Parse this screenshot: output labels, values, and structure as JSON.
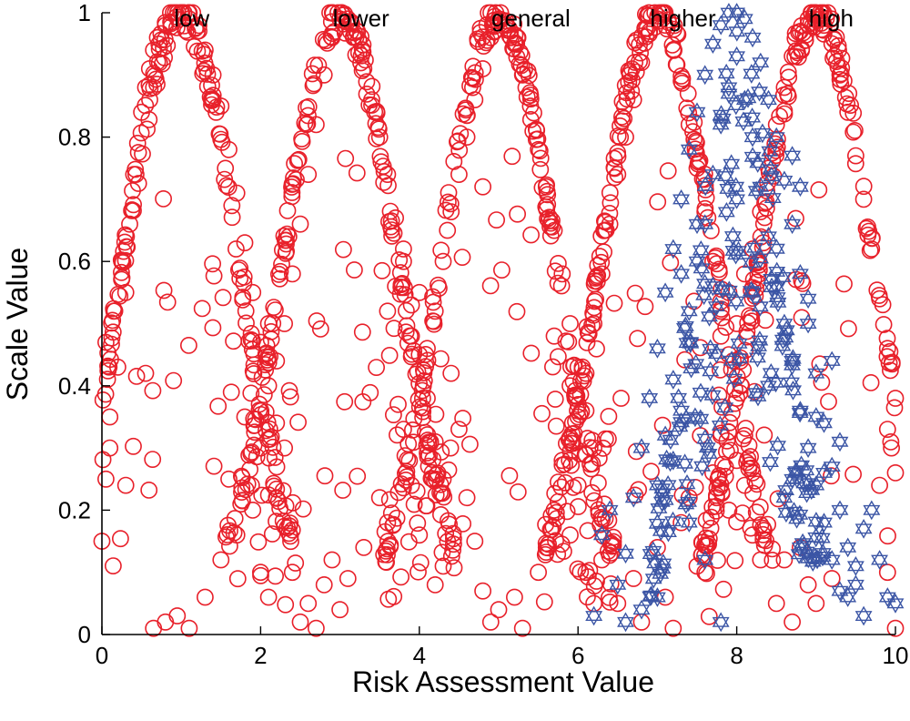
{
  "chart_data": {
    "type": "scatter",
    "title": "",
    "xlabel": "Risk Assessment Value",
    "ylabel": "Scale Value",
    "xlim": [
      0,
      10
    ],
    "ylim": [
      0,
      1
    ],
    "xticks": [
      0,
      2,
      4,
      6,
      8,
      10
    ],
    "yticks": [
      0,
      0.2,
      0.4,
      0.6,
      0.8,
      1
    ],
    "xtick_labels": [
      "0",
      "2",
      "4",
      "6",
      "8",
      "10"
    ],
    "ytick_labels": [
      "0",
      "0.2",
      "0.4",
      "0.6",
      "0.8",
      "1"
    ],
    "grid": false,
    "legend": null,
    "annotations": [
      {
        "text": "low",
        "x": 1
      },
      {
        "text": "lower",
        "x": 3
      },
      {
        "text": "general",
        "x": 5
      },
      {
        "text": "higher",
        "x": 7
      },
      {
        "text": "high",
        "x": 9
      }
    ],
    "series": [
      {
        "marker": "circle",
        "color": "#e8202a",
        "shape": "gaussian membership clouds centred at 1, 3, 5, 7, 9",
        "centers": [
          1,
          3,
          5,
          7,
          9
        ],
        "sigma": 0.72,
        "points": [
          [
            0.05,
            0.47
          ],
          [
            0.1,
            0.35
          ],
          [
            0.15,
            0.52
          ],
          [
            0.2,
            0.43
          ],
          [
            0.25,
            0.6
          ],
          [
            0.3,
            0.55
          ],
          [
            0.35,
            0.66
          ],
          [
            0.4,
            0.74
          ],
          [
            0.45,
            0.79
          ],
          [
            0.5,
            0.84
          ],
          [
            0.55,
            0.88
          ],
          [
            0.6,
            0.91
          ],
          [
            0.65,
            0.94
          ],
          [
            0.7,
            0.96
          ],
          [
            0.8,
            0.98
          ],
          [
            0.9,
            1.0
          ],
          [
            1.0,
            1.0
          ],
          [
            1.1,
            0.99
          ],
          [
            1.2,
            0.97
          ],
          [
            1.3,
            0.94
          ],
          [
            1.4,
            0.9
          ],
          [
            1.5,
            0.85
          ],
          [
            1.6,
            0.78
          ],
          [
            1.7,
            0.71
          ],
          [
            1.8,
            0.63
          ],
          [
            1.9,
            0.55
          ],
          [
            2.0,
            0.47
          ],
          [
            2.1,
            0.4
          ],
          [
            2.2,
            0.34
          ],
          [
            2.3,
            0.3
          ],
          [
            0.0,
            0.15
          ],
          [
            0.05,
            0.25
          ],
          [
            0.1,
            0.3
          ],
          [
            0.3,
            0.24
          ],
          [
            0.55,
            0.42
          ],
          [
            0.65,
            0.01
          ],
          [
            0.8,
            0.02
          ],
          [
            0.95,
            0.03
          ],
          [
            1.1,
            0.01
          ],
          [
            1.3,
            0.06
          ],
          [
            1.5,
            0.12
          ],
          [
            1.6,
            0.25
          ],
          [
            1.7,
            0.16
          ],
          [
            1.8,
            0.35
          ],
          [
            1.9,
            0.2
          ],
          [
            2.0,
            0.1
          ],
          [
            2.1,
            0.06
          ],
          [
            2.2,
            0.22
          ],
          [
            2.0,
            0.3
          ],
          [
            2.1,
            0.5
          ],
          [
            2.2,
            0.44
          ],
          [
            2.3,
            0.5
          ],
          [
            2.4,
            0.58
          ],
          [
            2.5,
            0.66
          ],
          [
            2.6,
            0.74
          ],
          [
            2.7,
            0.82
          ],
          [
            2.8,
            0.9
          ],
          [
            2.9,
            0.96
          ],
          [
            3.0,
            0.99
          ],
          [
            3.1,
            0.99
          ],
          [
            3.2,
            0.96
          ],
          [
            3.3,
            0.91
          ],
          [
            3.4,
            0.86
          ],
          [
            3.5,
            0.8
          ],
          [
            3.6,
            0.74
          ],
          [
            3.7,
            0.67
          ],
          [
            3.8,
            0.6
          ],
          [
            3.9,
            0.53
          ],
          [
            4.0,
            0.45
          ],
          [
            4.1,
            0.38
          ],
          [
            4.2,
            0.31
          ],
          [
            4.3,
            0.25
          ],
          [
            2.4,
            0.1
          ],
          [
            2.5,
            0.02
          ],
          [
            2.6,
            0.05
          ],
          [
            2.7,
            0.01
          ],
          [
            2.8,
            0.08
          ],
          [
            2.9,
            0.12
          ],
          [
            3.0,
            0.04
          ],
          [
            3.1,
            0.09
          ],
          [
            3.3,
            0.14
          ],
          [
            3.5,
            0.22
          ],
          [
            3.6,
            0.18
          ],
          [
            3.8,
            0.33
          ],
          [
            3.9,
            0.24
          ],
          [
            4.0,
            0.16
          ],
          [
            4.2,
            0.08
          ],
          [
            4.3,
            0.11
          ],
          [
            3.6,
            0.52
          ],
          [
            3.7,
            0.56
          ],
          [
            3.8,
            0.62
          ],
          [
            3.9,
            0.48
          ],
          [
            4.0,
            0.55
          ],
          [
            4.1,
            0.46
          ],
          [
            4.2,
            0.52
          ],
          [
            4.3,
            0.6
          ],
          [
            4.4,
            0.68
          ],
          [
            4.5,
            0.74
          ],
          [
            4.6,
            0.8
          ],
          [
            4.7,
            0.86
          ],
          [
            4.8,
            0.91
          ],
          [
            4.9,
            0.96
          ],
          [
            5.0,
            0.99
          ],
          [
            5.1,
            0.98
          ],
          [
            5.2,
            0.95
          ],
          [
            5.3,
            0.9
          ],
          [
            5.4,
            0.85
          ],
          [
            5.5,
            0.78
          ],
          [
            5.6,
            0.72
          ],
          [
            5.7,
            0.65
          ],
          [
            5.8,
            0.58
          ],
          [
            5.9,
            0.5
          ],
          [
            6.0,
            0.43
          ],
          [
            6.1,
            0.36
          ],
          [
            6.2,
            0.3
          ],
          [
            4.4,
            0.42
          ],
          [
            4.5,
            0.33
          ],
          [
            4.6,
            0.22
          ],
          [
            4.7,
            0.15
          ],
          [
            4.8,
            0.07
          ],
          [
            4.9,
            0.02
          ],
          [
            5.0,
            0.04
          ],
          [
            5.2,
            0.06
          ],
          [
            5.3,
            0.01
          ],
          [
            5.5,
            0.1
          ],
          [
            5.6,
            0.14
          ],
          [
            5.7,
            0.2
          ],
          [
            5.8,
            0.28
          ],
          [
            5.9,
            0.16
          ],
          [
            6.0,
            0.24
          ],
          [
            6.1,
            0.1
          ],
          [
            6.2,
            0.05
          ],
          [
            4.8,
            0.72
          ],
          [
            5.7,
            0.48
          ],
          [
            5.9,
            0.4
          ],
          [
            6.0,
            0.35
          ],
          [
            6.1,
            0.42
          ],
          [
            6.2,
            0.5
          ],
          [
            6.3,
            0.58
          ],
          [
            6.4,
            0.66
          ],
          [
            6.5,
            0.74
          ],
          [
            6.6,
            0.8
          ],
          [
            6.7,
            0.86
          ],
          [
            6.8,
            0.92
          ],
          [
            6.9,
            0.97
          ],
          [
            7.0,
            0.99
          ],
          [
            7.1,
            0.98
          ],
          [
            7.2,
            0.94
          ],
          [
            7.3,
            0.89
          ],
          [
            7.4,
            0.82
          ],
          [
            7.5,
            0.75
          ],
          [
            7.6,
            0.68
          ],
          [
            7.7,
            0.6
          ],
          [
            7.8,
            0.52
          ],
          [
            7.9,
            0.45
          ],
          [
            8.0,
            0.38
          ],
          [
            8.1,
            0.32
          ],
          [
            8.2,
            0.26
          ],
          [
            6.3,
            0.12
          ],
          [
            6.5,
            0.05
          ],
          [
            6.7,
            0.09
          ],
          [
            6.8,
            0.02
          ],
          [
            7.0,
            0.14
          ],
          [
            7.1,
            0.06
          ],
          [
            7.2,
            0.01
          ],
          [
            7.3,
            0.18
          ],
          [
            7.4,
            0.22
          ],
          [
            7.5,
            0.11
          ],
          [
            7.6,
            0.1
          ],
          [
            7.7,
            0.26
          ],
          [
            7.8,
            0.32
          ],
          [
            7.9,
            0.2
          ],
          [
            8.0,
            0.28
          ],
          [
            8.1,
            0.24
          ],
          [
            8.2,
            0.16
          ],
          [
            8.3,
            0.12
          ],
          [
            7.8,
            0.48
          ],
          [
            7.9,
            0.55
          ],
          [
            8.0,
            0.5
          ],
          [
            8.1,
            0.58
          ],
          [
            8.2,
            0.62
          ],
          [
            8.3,
            0.68
          ],
          [
            8.4,
            0.75
          ],
          [
            8.5,
            0.82
          ],
          [
            8.6,
            0.88
          ],
          [
            8.7,
            0.93
          ],
          [
            8.8,
            0.97
          ],
          [
            8.9,
            0.99
          ],
          [
            9.0,
            1.0
          ],
          [
            9.1,
            0.98
          ],
          [
            9.2,
            0.95
          ],
          [
            9.3,
            0.9
          ],
          [
            9.4,
            0.84
          ],
          [
            9.5,
            0.77
          ],
          [
            9.6,
            0.7
          ],
          [
            9.7,
            0.62
          ],
          [
            9.8,
            0.54
          ],
          [
            9.9,
            0.46
          ],
          [
            10.0,
            0.38
          ],
          [
            9.95,
            0.3
          ],
          [
            8.5,
            0.05
          ],
          [
            8.6,
            0.12
          ],
          [
            8.7,
            0.02
          ],
          [
            8.8,
            0.14
          ],
          [
            8.9,
            0.08
          ],
          [
            9.0,
            0.05
          ],
          [
            9.2,
            0.09
          ],
          [
            9.9,
            0.1
          ],
          [
            10.0,
            0.01
          ],
          [
            9.8,
            0.24
          ],
          [
            9.9,
            0.33
          ],
          [
            10.0,
            0.26
          ]
        ]
      },
      {
        "marker": "hexagram",
        "color": "#3b55a5",
        "shape": "star cloud concentrated around x = 8",
        "points": [
          [
            6.2,
            0.03
          ],
          [
            6.3,
            0.16
          ],
          [
            6.4,
            0.2
          ],
          [
            6.5,
            0.08
          ],
          [
            6.6,
            0.13
          ],
          [
            6.7,
            0.22
          ],
          [
            6.8,
            0.3
          ],
          [
            6.9,
            0.38
          ],
          [
            7.0,
            0.46
          ],
          [
            7.1,
            0.55
          ],
          [
            7.2,
            0.62
          ],
          [
            7.3,
            0.7
          ],
          [
            7.4,
            0.78
          ],
          [
            7.5,
            0.84
          ],
          [
            7.6,
            0.9
          ],
          [
            7.7,
            0.95
          ],
          [
            7.8,
            0.98
          ],
          [
            7.9,
            1.0
          ],
          [
            8.0,
            1.0
          ],
          [
            8.1,
            0.99
          ],
          [
            8.2,
            0.96
          ],
          [
            8.3,
            0.92
          ],
          [
            8.4,
            0.86
          ],
          [
            8.5,
            0.8
          ],
          [
            8.6,
            0.73
          ],
          [
            8.7,
            0.66
          ],
          [
            8.8,
            0.58
          ],
          [
            8.9,
            0.5
          ],
          [
            9.0,
            0.42
          ],
          [
            9.1,
            0.34
          ],
          [
            9.2,
            0.27
          ],
          [
            9.3,
            0.2
          ],
          [
            9.4,
            0.14
          ],
          [
            9.5,
            0.08
          ],
          [
            9.6,
            0.03
          ],
          [
            7.0,
            0.06
          ],
          [
            7.1,
            0.32
          ],
          [
            7.2,
            0.41
          ],
          [
            7.3,
            0.36
          ],
          [
            7.4,
            0.52
          ],
          [
            7.5,
            0.6
          ],
          [
            7.6,
            0.66
          ],
          [
            7.7,
            0.74
          ],
          [
            7.8,
            0.82
          ],
          [
            7.9,
            0.88
          ],
          [
            8.0,
            0.93
          ],
          [
            8.1,
            0.86
          ],
          [
            8.2,
            0.8
          ],
          [
            8.3,
            0.72
          ],
          [
            8.4,
            0.64
          ],
          [
            8.5,
            0.56
          ],
          [
            8.6,
            0.5
          ],
          [
            8.7,
            0.44
          ],
          [
            8.8,
            0.36
          ],
          [
            8.9,
            0.3
          ],
          [
            9.0,
            0.24
          ],
          [
            9.1,
            0.18
          ],
          [
            9.2,
            0.12
          ],
          [
            9.3,
            0.07
          ],
          [
            6.6,
            0.02
          ],
          [
            6.8,
            0.04
          ],
          [
            7.0,
            0.24
          ],
          [
            7.2,
            0.28
          ],
          [
            7.4,
            0.18
          ],
          [
            7.6,
            0.12
          ],
          [
            7.8,
            0.02
          ],
          [
            8.0,
            0.7
          ],
          [
            8.2,
            0.55
          ],
          [
            8.4,
            0.4
          ],
          [
            8.6,
            0.22
          ],
          [
            8.8,
            0.14
          ],
          [
            9.0,
            0.35
          ],
          [
            9.2,
            0.44
          ],
          [
            9.4,
            0.06
          ],
          [
            9.6,
            0.17
          ],
          [
            9.7,
            0.2
          ],
          [
            9.8,
            0.12
          ],
          [
            9.9,
            0.06
          ],
          [
            10.0,
            0.05
          ],
          [
            8.7,
            0.77
          ],
          [
            8.8,
            0.72
          ],
          [
            8.9,
            0.54
          ],
          [
            9.1,
            0.26
          ],
          [
            9.3,
            0.31
          ],
          [
            9.5,
            0.11
          ],
          [
            7.3,
            0.58
          ],
          [
            7.5,
            0.66
          ],
          [
            7.7,
            0.56
          ]
        ]
      }
    ]
  }
}
